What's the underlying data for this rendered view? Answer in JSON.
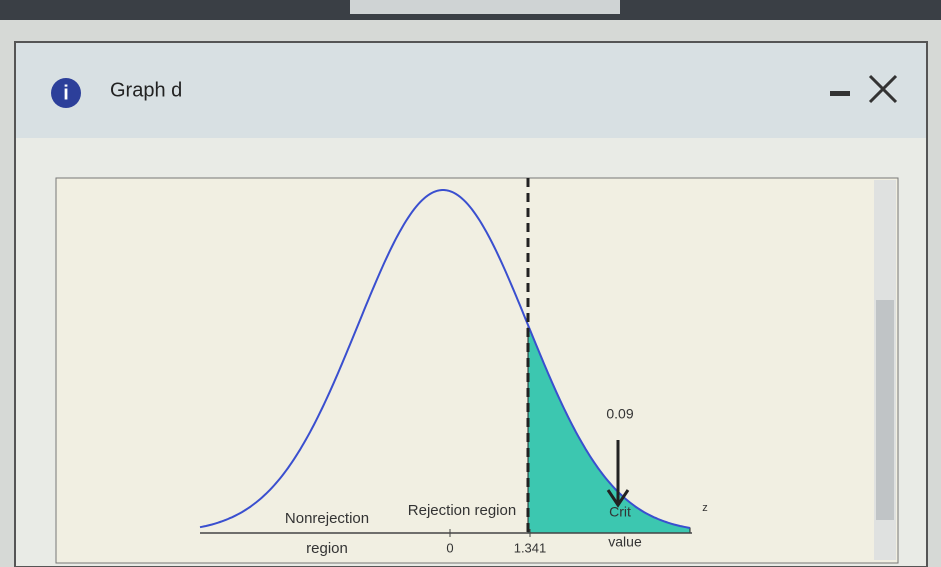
{
  "dialog": {
    "title": "Graph d",
    "graph": {
      "nonrejection": [
        "Nonrejection",
        "region"
      ],
      "rejection": "Rejection region",
      "ticks": [
        "0",
        "1.341"
      ],
      "area_label": "0.09",
      "crit": [
        "Crit",
        "value"
      ],
      "axis_label": "z"
    }
  }
}
